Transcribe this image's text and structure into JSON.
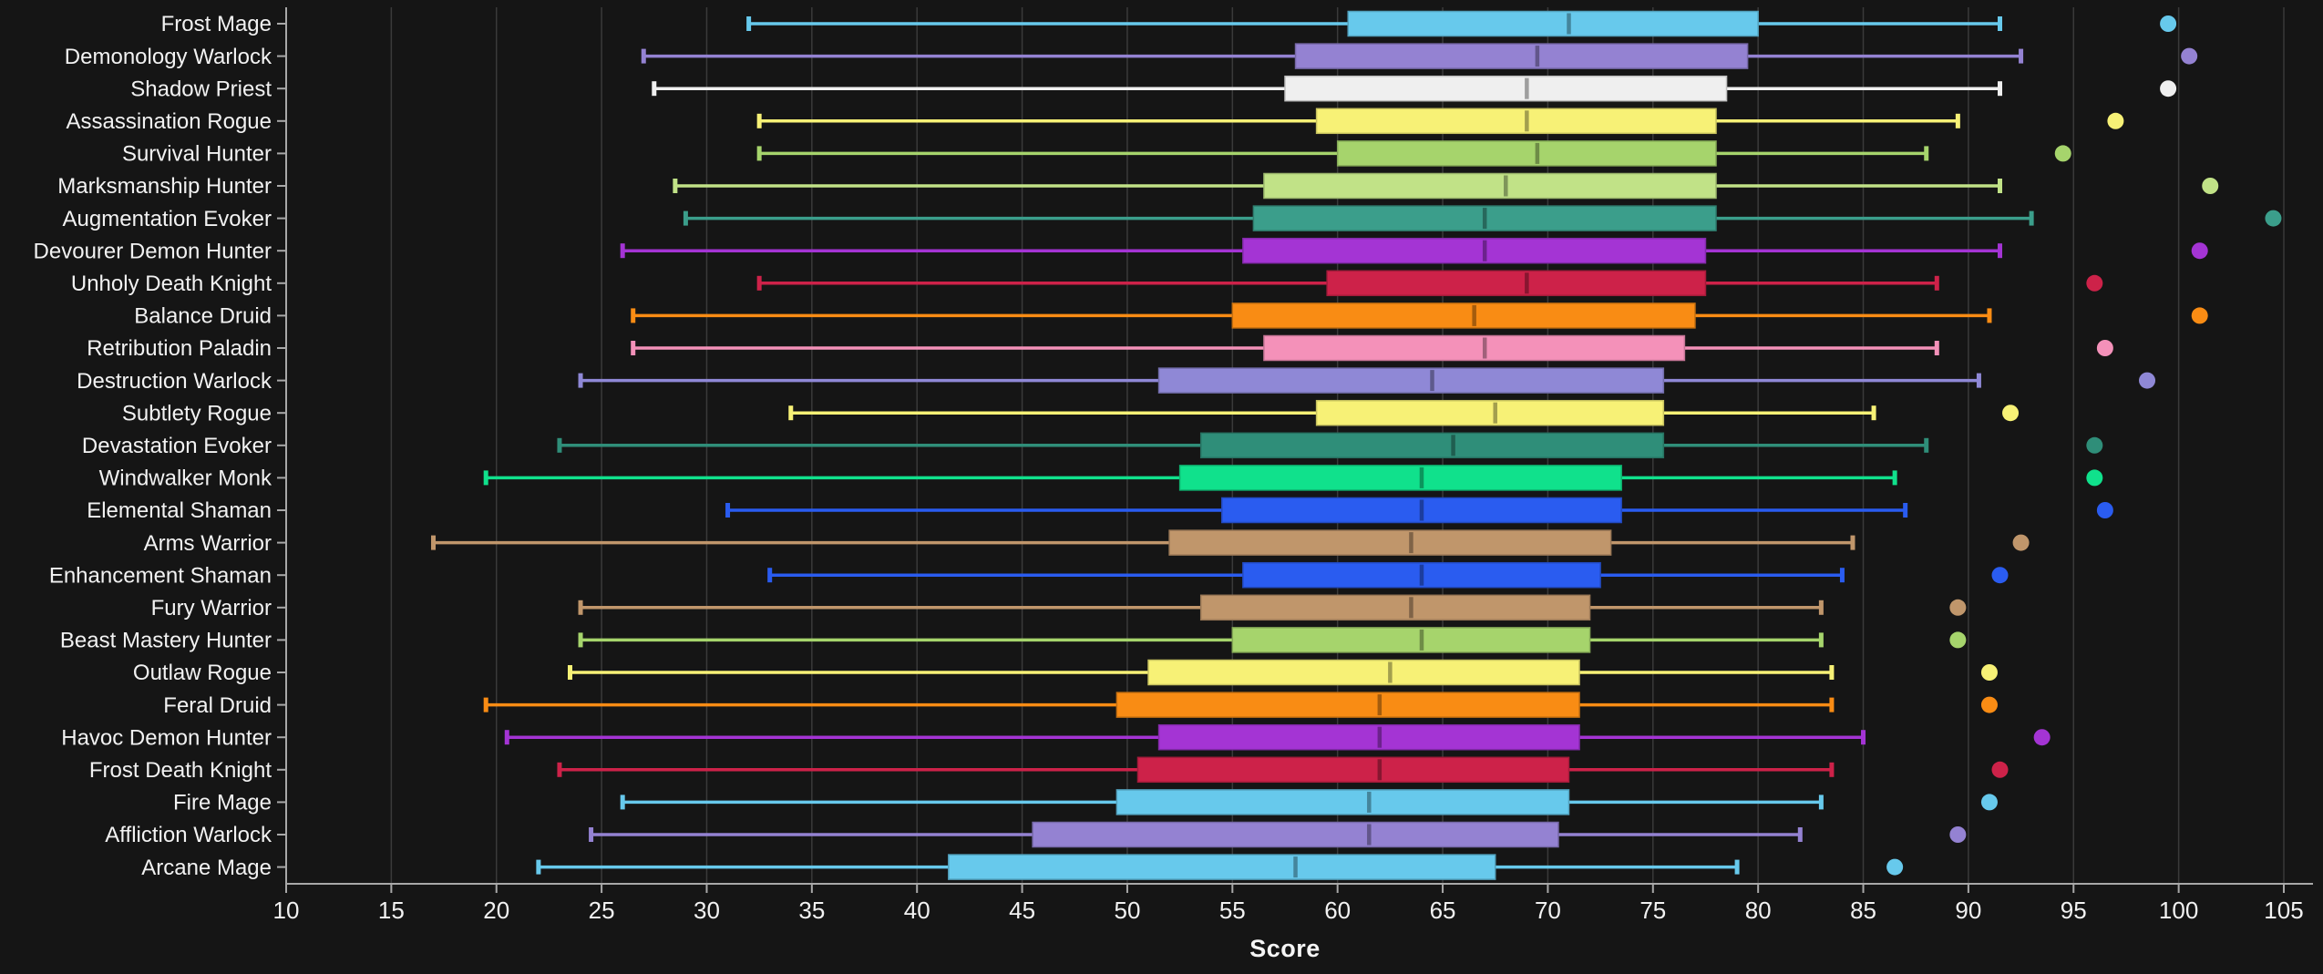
{
  "chart_data": {
    "type": "boxplot",
    "orientation": "horizontal",
    "title": "",
    "xlabel": "Score",
    "ylabel": "",
    "xlim": [
      10,
      105
    ],
    "x_ticks": [
      10,
      15,
      20,
      25,
      30,
      35,
      40,
      45,
      50,
      55,
      60,
      65,
      70,
      75,
      80,
      85,
      90,
      95,
      100,
      105
    ],
    "grid": true,
    "legend": false,
    "theme": {
      "background": "#151515",
      "text_color": "#f2f2f2",
      "grid_color": "#3a3a3a",
      "axis_color": "#a8a8a8"
    },
    "rows": [
      {
        "label": "Frost Mage",
        "color": "#67c9ec",
        "whisker_low": 32,
        "q1": 60.5,
        "median": 71,
        "q3": 80,
        "whisker_high": 91.5,
        "outliers": [
          99.5
        ]
      },
      {
        "label": "Demonology Warlock",
        "color": "#9482d2",
        "whisker_low": 27,
        "q1": 58,
        "median": 69.5,
        "q3": 79.5,
        "whisker_high": 92.5,
        "outliers": [
          100.5
        ]
      },
      {
        "label": "Shadow Priest",
        "color": "#efefef",
        "whisker_low": 27.5,
        "q1": 57.5,
        "median": 69,
        "q3": 78.5,
        "whisker_high": 91.5,
        "outliers": [
          99.5
        ]
      },
      {
        "label": "Assassination Rogue",
        "color": "#f7f176",
        "whisker_low": 32.5,
        "q1": 59,
        "median": 69,
        "q3": 78,
        "whisker_high": 89.5,
        "outliers": [
          97
        ]
      },
      {
        "label": "Survival Hunter",
        "color": "#a6d46c",
        "whisker_low": 32.5,
        "q1": 60,
        "median": 69.5,
        "q3": 78,
        "whisker_high": 88,
        "outliers": [
          94.5
        ]
      },
      {
        "label": "Marksmanship Hunter",
        "color": "#c1e287",
        "whisker_low": 28.5,
        "q1": 56.5,
        "median": 68,
        "q3": 78,
        "whisker_high": 91.5,
        "outliers": [
          101.5
        ]
      },
      {
        "label": "Augmentation Evoker",
        "color": "#3b9e8b",
        "whisker_low": 29,
        "q1": 56,
        "median": 67,
        "q3": 78,
        "whisker_high": 93,
        "outliers": [
          104.5
        ]
      },
      {
        "label": "Devourer Demon Hunter",
        "color": "#a434d4",
        "whisker_low": 26,
        "q1": 55.5,
        "median": 67,
        "q3": 77.5,
        "whisker_high": 91.5,
        "outliers": [
          101
        ]
      },
      {
        "label": "Unholy Death Knight",
        "color": "#cd2249",
        "whisker_low": 32.5,
        "q1": 59.5,
        "median": 69,
        "q3": 77.5,
        "whisker_high": 88.5,
        "outliers": [
          96
        ]
      },
      {
        "label": "Balance Druid",
        "color": "#f98c14",
        "whisker_low": 26.5,
        "q1": 55,
        "median": 66.5,
        "q3": 77,
        "whisker_high": 91,
        "outliers": [
          101
        ]
      },
      {
        "label": "Retribution Paladin",
        "color": "#f491b9",
        "whisker_low": 26.5,
        "q1": 56.5,
        "median": 67,
        "q3": 76.5,
        "whisker_high": 88.5,
        "outliers": [
          96.5
        ]
      },
      {
        "label": "Destruction Warlock",
        "color": "#8f88d6",
        "whisker_low": 24,
        "q1": 51.5,
        "median": 64.5,
        "q3": 75.5,
        "whisker_high": 90.5,
        "outliers": [
          98.5
        ]
      },
      {
        "label": "Subtlety Rogue",
        "color": "#f7f176",
        "whisker_low": 34,
        "q1": 59,
        "median": 67.5,
        "q3": 75.5,
        "whisker_high": 85.5,
        "outliers": [
          92
        ]
      },
      {
        "label": "Devastation Evoker",
        "color": "#2f8e79",
        "whisker_low": 23,
        "q1": 53.5,
        "median": 65.5,
        "q3": 75.5,
        "whisker_high": 88,
        "outliers": [
          96
        ]
      },
      {
        "label": "Windwalker Monk",
        "color": "#10e18c",
        "whisker_low": 19.5,
        "q1": 52.5,
        "median": 64,
        "q3": 73.5,
        "whisker_high": 86.5,
        "outliers": [
          96
        ]
      },
      {
        "label": "Elemental Shaman",
        "color": "#2a5cf0",
        "whisker_low": 31,
        "q1": 54.5,
        "median": 64,
        "q3": 73.5,
        "whisker_high": 87,
        "outliers": [
          96.5
        ]
      },
      {
        "label": "Arms Warrior",
        "color": "#c0966b",
        "whisker_low": 17,
        "q1": 52,
        "median": 63.5,
        "q3": 73,
        "whisker_high": 84.5,
        "outliers": [
          92.5
        ]
      },
      {
        "label": "Enhancement Shaman",
        "color": "#2a5cf0",
        "whisker_low": 33,
        "q1": 55.5,
        "median": 64,
        "q3": 72.5,
        "whisker_high": 84,
        "outliers": [
          91.5
        ]
      },
      {
        "label": "Fury Warrior",
        "color": "#c0966b",
        "whisker_low": 24,
        "q1": 53.5,
        "median": 63.5,
        "q3": 72,
        "whisker_high": 83,
        "outliers": [
          89.5
        ]
      },
      {
        "label": "Beast Mastery Hunter",
        "color": "#a6d46c",
        "whisker_low": 24,
        "q1": 55,
        "median": 64,
        "q3": 72,
        "whisker_high": 83,
        "outliers": [
          89.5
        ]
      },
      {
        "label": "Outlaw Rogue",
        "color": "#f7f176",
        "whisker_low": 23.5,
        "q1": 51,
        "median": 62.5,
        "q3": 71.5,
        "whisker_high": 83.5,
        "outliers": [
          91
        ]
      },
      {
        "label": "Feral Druid",
        "color": "#f98c14",
        "whisker_low": 19.5,
        "q1": 49.5,
        "median": 62,
        "q3": 71.5,
        "whisker_high": 83.5,
        "outliers": [
          91
        ]
      },
      {
        "label": "Havoc Demon Hunter",
        "color": "#a434d4",
        "whisker_low": 20.5,
        "q1": 51.5,
        "median": 62,
        "q3": 71.5,
        "whisker_high": 85,
        "outliers": [
          93.5
        ]
      },
      {
        "label": "Frost Death Knight",
        "color": "#cd2249",
        "whisker_low": 23,
        "q1": 50.5,
        "median": 62,
        "q3": 71,
        "whisker_high": 83.5,
        "outliers": [
          91.5
        ]
      },
      {
        "label": "Fire Mage",
        "color": "#67c9ec",
        "whisker_low": 26,
        "q1": 49.5,
        "median": 61.5,
        "q3": 71,
        "whisker_high": 83,
        "outliers": [
          91
        ]
      },
      {
        "label": "Affliction Warlock",
        "color": "#9482d2",
        "whisker_low": 24.5,
        "q1": 45.5,
        "median": 61.5,
        "q3": 70.5,
        "whisker_high": 82,
        "outliers": [
          89.5
        ]
      },
      {
        "label": "Arcane Mage",
        "color": "#67c9ec",
        "whisker_low": 22,
        "q1": 41.5,
        "median": 58,
        "q3": 67.5,
        "whisker_high": 79,
        "outliers": [
          86.5
        ]
      }
    ]
  }
}
